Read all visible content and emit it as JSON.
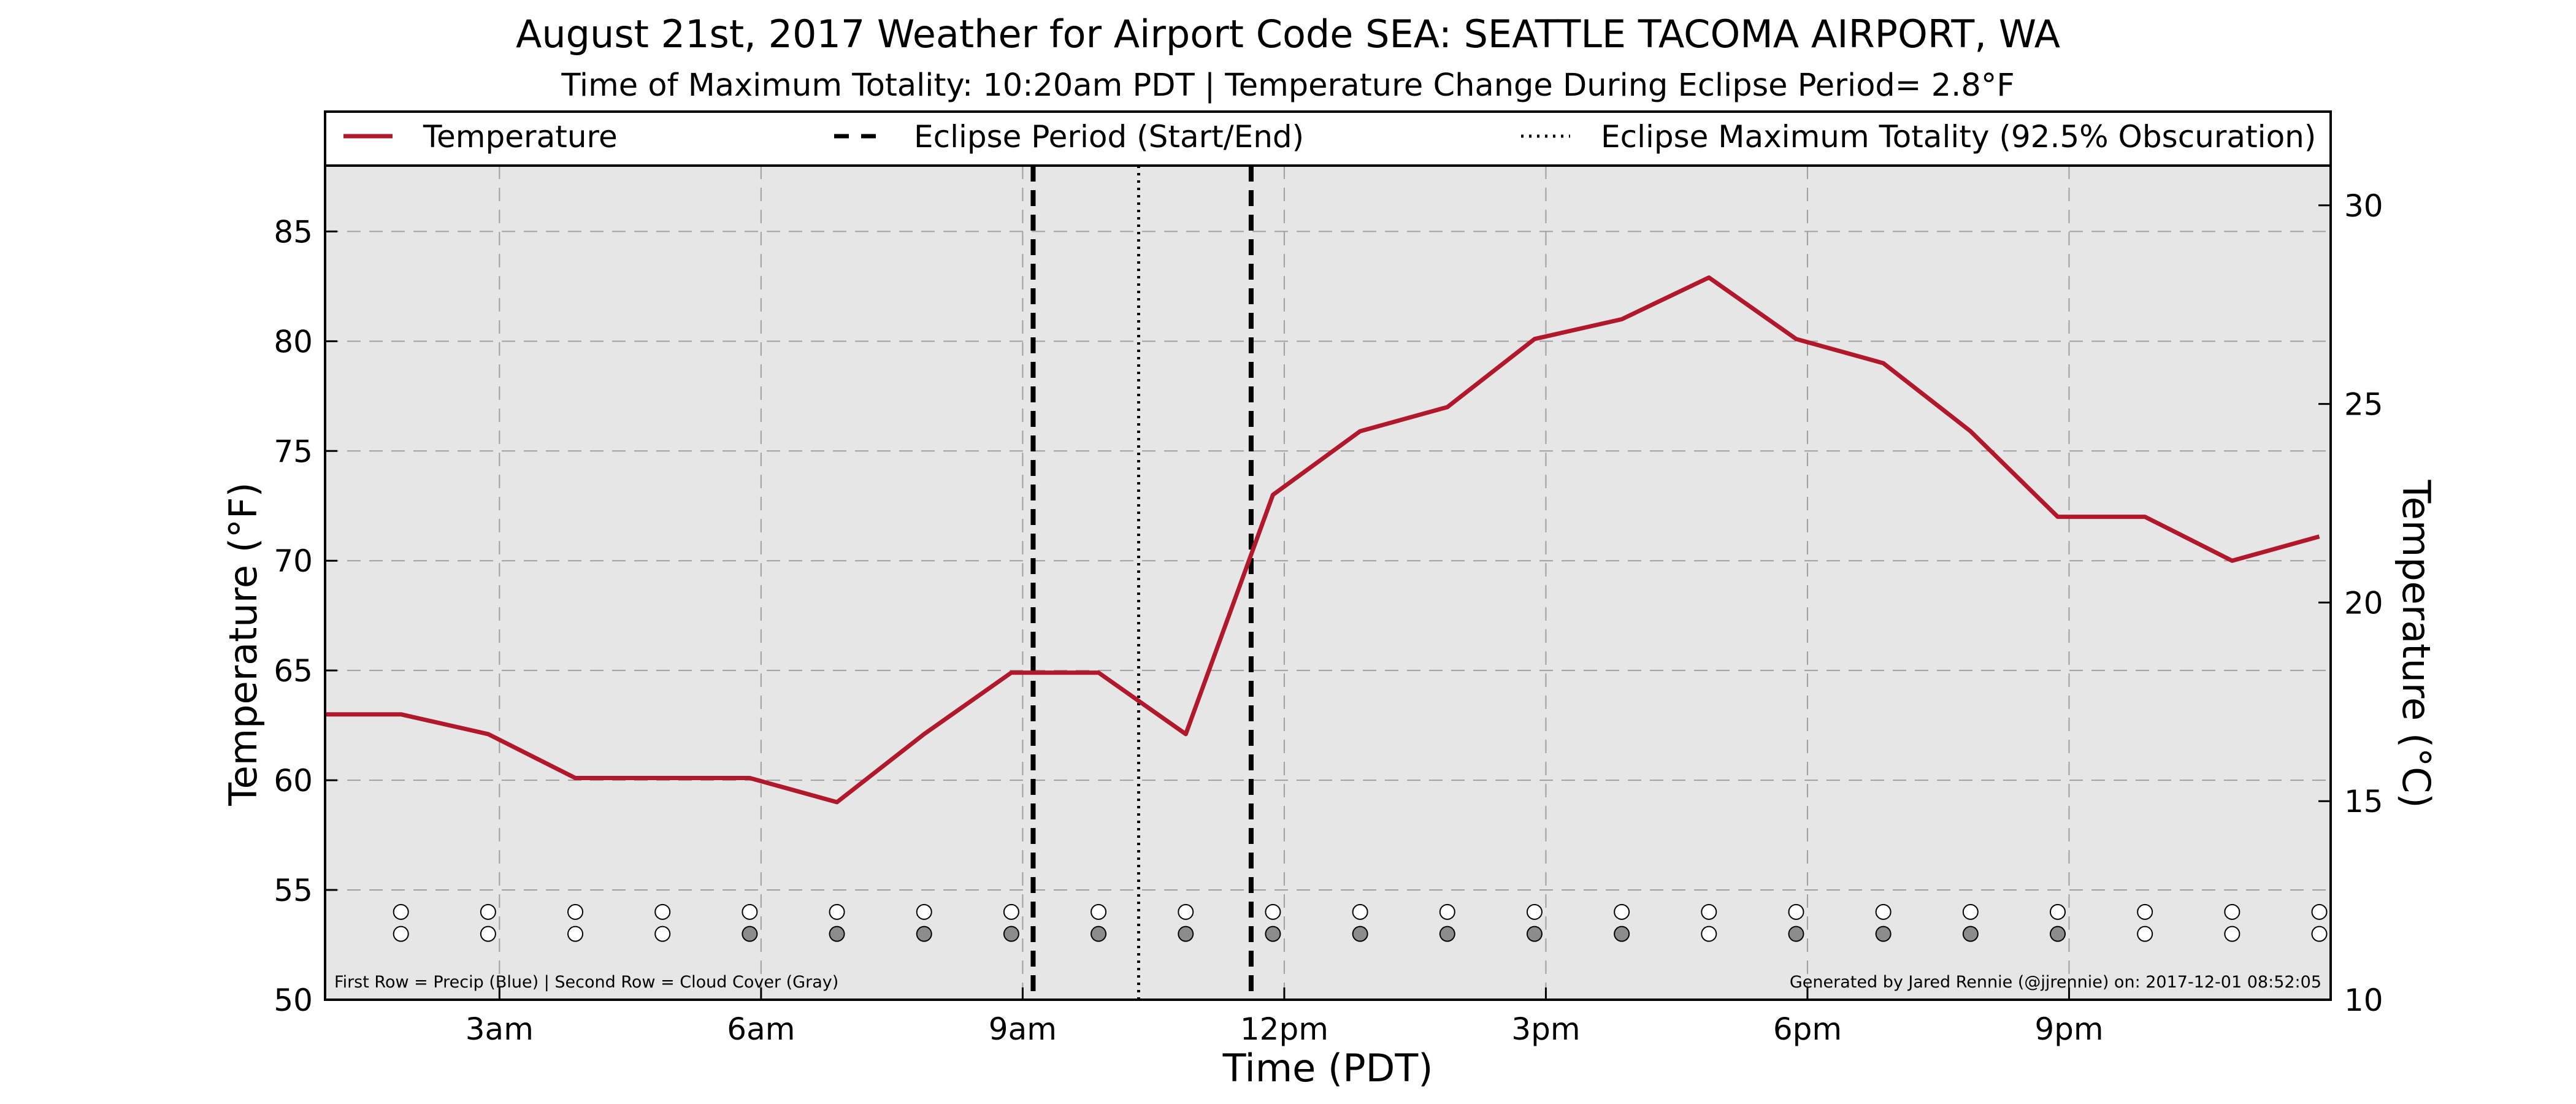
{
  "chart_data": {
    "type": "line",
    "title": "August 21st, 2017 Weather for Airport Code SEA: SEATTLE TACOMA AIRPORT, WA",
    "subtitle": "Time of Maximum Totality: 10:20am PDT | Temperature Change During Eclipse Period= 2.8°F",
    "xlabel": "Time (PDT)",
    "ylabel": "Temperature (°F)",
    "y2label": "Temperature (°C)",
    "xlim": [
      1.0,
      24.0
    ],
    "ylim": [
      50,
      88
    ],
    "y2lim": [
      10,
      31
    ],
    "x_ticks": [
      {
        "x": 3,
        "label": "3am"
      },
      {
        "x": 6,
        "label": "6am"
      },
      {
        "x": 9,
        "label": "9am"
      },
      {
        "x": 12,
        "label": "12pm"
      },
      {
        "x": 15,
        "label": "3pm"
      },
      {
        "x": 18,
        "label": "6pm"
      },
      {
        "x": 21,
        "label": "9pm"
      }
    ],
    "y_ticks": [
      {
        "v": 50,
        "label": "50"
      },
      {
        "v": 55,
        "label": "55"
      },
      {
        "v": 60,
        "label": "60"
      },
      {
        "v": 65,
        "label": "65"
      },
      {
        "v": 70,
        "label": "70"
      },
      {
        "v": 75,
        "label": "75"
      },
      {
        "v": 80,
        "label": "80"
      },
      {
        "v": 85,
        "label": "85"
      }
    ],
    "y2_ticks": [
      {
        "v": 10,
        "label": "10"
      },
      {
        "v": 15,
        "label": "15"
      },
      {
        "v": 20,
        "label": "20"
      },
      {
        "v": 25,
        "label": "25"
      },
      {
        "v": 30,
        "label": "30"
      }
    ],
    "grid": true,
    "legend_position": "top",
    "legend": [
      {
        "label": "Temperature",
        "style": "solid"
      },
      {
        "label": "Eclipse Period (Start/End)",
        "style": "dashed"
      },
      {
        "label": "Eclipse Maximum Totality (92.5% Obscuration)",
        "style": "dotted"
      }
    ],
    "series": [
      {
        "name": "Temperature",
        "color": "#b2182b",
        "x": [
          1.0,
          1.87,
          2.87,
          3.87,
          4.87,
          5.87,
          6.87,
          7.87,
          8.87,
          9.87,
          10.87,
          11.87,
          12.87,
          13.87,
          14.87,
          15.87,
          16.87,
          17.87,
          18.87,
          19.87,
          20.87,
          21.87,
          22.87,
          23.87
        ],
        "y": [
          63.0,
          63.0,
          62.1,
          60.1,
          60.1,
          60.1,
          59.0,
          62.1,
          64.9,
          64.9,
          62.1,
          73.0,
          75.9,
          77.0,
          80.1,
          81.0,
          82.9,
          80.1,
          79.0,
          75.9,
          72.0,
          72.0,
          70.0,
          71.1
        ]
      }
    ],
    "eclipse_start": 9.12,
    "eclipse_end": 11.62,
    "eclipse_max": 10.33,
    "indicator_rows": {
      "note": "First Row = Precip (Blue) | Second Row = Cloud Cover (Gray)",
      "row1_value": 54,
      "row2_value": 53,
      "x": [
        1.87,
        2.87,
        3.87,
        4.87,
        5.87,
        6.87,
        7.87,
        8.87,
        9.87,
        10.87,
        11.87,
        12.87,
        13.87,
        14.87,
        15.87,
        16.87,
        17.87,
        18.87,
        19.87,
        20.87,
        21.87,
        22.87,
        23.87,
        24.87
      ],
      "precip_filled": [
        false,
        false,
        false,
        false,
        false,
        false,
        false,
        false,
        false,
        false,
        false,
        false,
        false,
        false,
        false,
        false,
        false,
        false,
        false,
        false,
        false,
        false,
        false,
        false
      ],
      "cloud_filled": [
        false,
        false,
        false,
        false,
        true,
        true,
        true,
        true,
        true,
        true,
        true,
        true,
        true,
        true,
        true,
        false,
        true,
        true,
        true,
        true,
        false,
        false,
        false,
        false
      ],
      "precip_color": "#1f4fbf",
      "cloud_color": "#8c8c8c"
    },
    "footer": "Generated by Jared Rennie (@jjrennie) on: 2017-12-01 08:52:05"
  }
}
